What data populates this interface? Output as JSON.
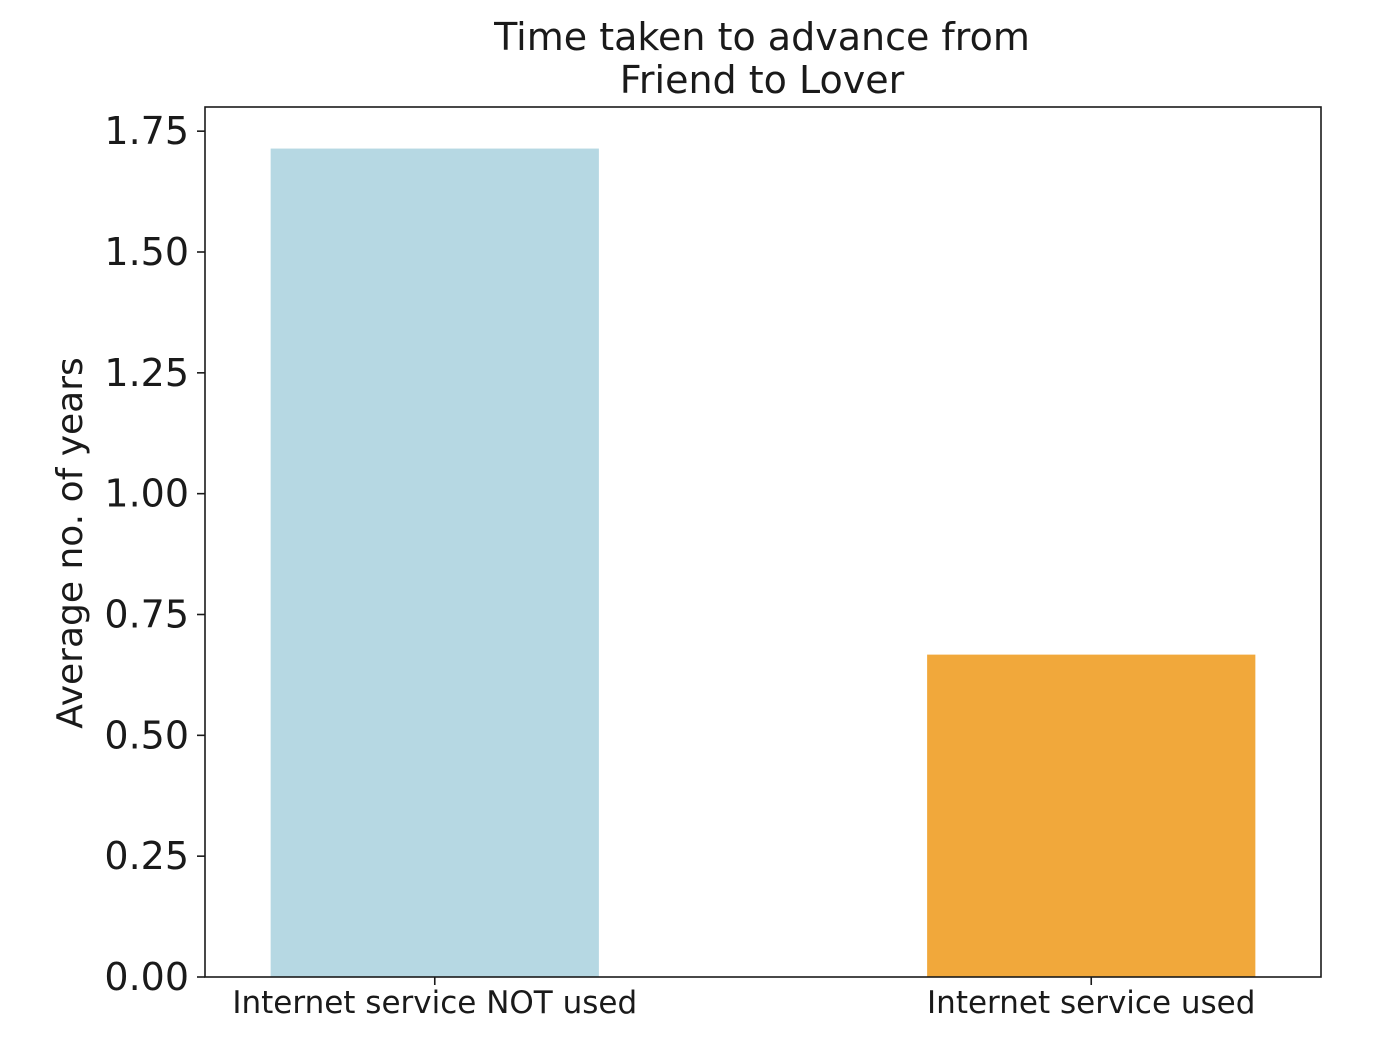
{
  "chart_data": {
    "type": "bar",
    "title_lines": [
      "Time taken to advance from",
      "Friend to Lover"
    ],
    "xlabel": "",
    "ylabel": "Average no. of years",
    "categories": [
      "Internet service NOT used",
      "Internet service used"
    ],
    "values": [
      1.714,
      0.667
    ],
    "bar_colors": [
      "#b6d8e3",
      "#f1a83b"
    ],
    "ylim": [
      0,
      1.8
    ],
    "yticks": [
      0.0,
      0.25,
      0.5,
      0.75,
      1.0,
      1.25,
      1.5,
      1.75
    ],
    "ytick_labels": [
      "0.00",
      "0.25",
      "0.50",
      "0.75",
      "1.00",
      "1.25",
      "1.50",
      "1.75"
    ],
    "grid": false,
    "legend": "none"
  }
}
